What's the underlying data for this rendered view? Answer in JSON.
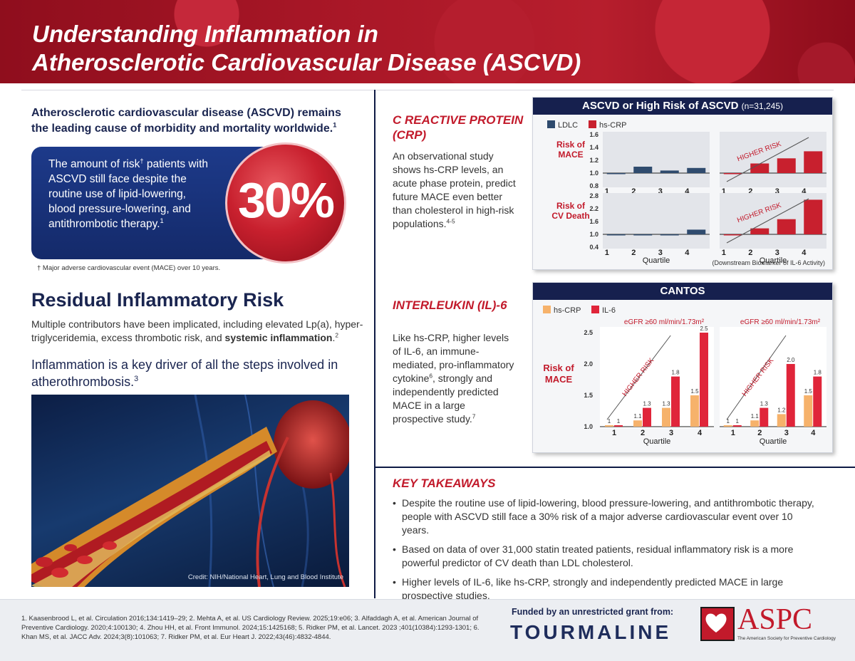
{
  "header": {
    "title_line1": "Understanding Inflammation in",
    "title_line2": "Atherosclerotic Cardiovascular Disease (ASCVD)"
  },
  "intro": {
    "text": "Atherosclerotic cardiovascular disease (ASCVD) remains the leading cause of morbidity and mortality worldwide.",
    "ref": "1"
  },
  "risk_box": {
    "text_a": "The amount of risk",
    "dagger": "†",
    "text_b": " patients with ASCVD still face despite the routine use of lipid-lowering, blood pressure-lowering, and antithrombotic therapy.",
    "ref": "1",
    "percent": "30%",
    "footnote": "† Major adverse cardiovascular event (MACE) over 10 years."
  },
  "residual": {
    "title": "Residual Inflammatory Risk",
    "body_a": "Multiple contributors have been implicated, including elevated Lp(a), hyper-triglyceridemia, excess thrombotic risk, and ",
    "body_bold": "systemic inflammation",
    "body_c": ".",
    "body_ref": "2",
    "driver": "Inflammation is a key driver of all the steps involved in atherothrombosis.",
    "driver_ref": "3",
    "image_credit": "Credit: NIH/National Heart, Lung and Blood Institute"
  },
  "crp": {
    "title": "C REACTIVE PROTEIN (CRP)",
    "body": "An observational study shows hs-CRP levels, an acute phase protein, predict future MACE even better than cholesterol in high-risk populations.",
    "ref": "4-5"
  },
  "il6": {
    "title": "INTERLEUKIN (IL)-6",
    "body_a": "Like hs-CRP, higher levels of IL-6, an immune-mediated, pro-inflammatory cytokine",
    "ref_a": "6",
    "body_b": ", strongly and independently predicted MACE in a large prospective study.",
    "ref_b": "7"
  },
  "chart_data": [
    {
      "type": "bar",
      "title": "ASCVD or High Risk of ASCVD",
      "subtitle": "(n=31,245)",
      "note": "(Downstream Biomarker of IL-6 Activity)",
      "colors": {
        "LDLC": "#2f4b6e",
        "hs-CRP": "#c8202e"
      },
      "annotation": "HIGHER RISK",
      "panels": [
        {
          "ylabel": "Risk of MACE",
          "xlabel": "Quartile",
          "yticks": [
            "1.6",
            "1.4",
            "1.2",
            "1.0",
            "0.8"
          ],
          "ylim": [
            0.8,
            1.6
          ],
          "categories": [
            "1",
            "2",
            "3",
            "4"
          ],
          "series": [
            {
              "name": "LDLC",
              "values": [
                1.0,
                1.1,
                1.04,
                1.08
              ]
            },
            {
              "name": "hs-CRP",
              "values": [
                1.0,
                1.15,
                1.23,
                1.34
              ]
            }
          ]
        },
        {
          "ylabel": "Risk of CV Death",
          "xlabel": "Quartile",
          "yticks": [
            "2.8",
            "2.2",
            "1.6",
            "1.0",
            "0.4"
          ],
          "ylim": [
            0.4,
            2.8
          ],
          "categories": [
            "1",
            "2",
            "3",
            "4"
          ],
          "series": [
            {
              "name": "LDLC",
              "values": [
                1.0,
                0.98,
                0.96,
                1.22
              ]
            },
            {
              "name": "hs-CRP",
              "values": [
                1.0,
                1.28,
                1.71,
                2.62
              ]
            }
          ]
        }
      ]
    },
    {
      "type": "bar",
      "title": "CANTOS",
      "ylabel": "Risk of MACE",
      "xlabel": "Quartile",
      "colors": {
        "hs-CRP": "#f6b26b",
        "IL-6": "#e0253a"
      },
      "annotation": "HIGHER RISK",
      "yticks": [
        "2.5",
        "2.0",
        "1.5",
        "1.0"
      ],
      "ylim": [
        1.0,
        2.5
      ],
      "categories": [
        "1",
        "2",
        "3",
        "4"
      ],
      "panels": [
        {
          "label": "eGFR ≥60 ml/min/1.73m²",
          "series": [
            {
              "name": "hs-CRP",
              "values": [
                1.0,
                1.1,
                1.3,
                1.5
              ],
              "labels": [
                "1",
                "1.1",
                "1.3",
                "1.5"
              ]
            },
            {
              "name": "IL-6",
              "values": [
                1.0,
                1.3,
                1.8,
                2.5
              ],
              "labels": [
                "1",
                "1.3",
                "1.8",
                "2.5"
              ]
            }
          ]
        },
        {
          "label": "eGFR ≥60 ml/min/1.73m²",
          "series": [
            {
              "name": "hs-CRP",
              "values": [
                1.0,
                1.1,
                1.2,
                1.5
              ],
              "labels": [
                "1",
                "1.1",
                "1.2",
                "1.5"
              ]
            },
            {
              "name": "IL-6",
              "values": [
                1.0,
                1.3,
                2.0,
                1.8
              ],
              "labels": [
                "1",
                "1.3",
                "2.0",
                "1.8"
              ]
            }
          ]
        }
      ]
    }
  ],
  "takeaways": {
    "title": "KEY TAKEAWAYS",
    "items": [
      "Despite the routine use of lipid-lowering, blood pressure-lowering, and antithrombotic therapy, people with ASCVD still face a 30% risk of a major adverse cardiovascular event over 10 years.",
      "Based on data of over 31,000 statin treated patients, residual inflammatory risk is a more powerful predictor of CV death than LDL cholesterol.",
      "Higher levels of IL-6, like hs-CRP, strongly and independently predicted MACE in large prospective studies."
    ]
  },
  "footer": {
    "references": "1. Kaasenbrood L, et al. Circulation 2016;134:1419–29; 2. Mehta A, et al. US Cardiology Review. 2025;19:e06; 3. Alfaddagh A, et al. American Journal of Preventive Cardiology. 2020;4:100130; 4. Zhou HH, et al. Front Immunol. 2024;15:1425168; 5. Ridker PM, et al. Lancet. 2023 ;401(10384):1293-1301; 6. Khan MS, et al. JACC Adv. 2024;3(8):101063; 7. Ridker PM, et al. Eur Heart J. 2022;43(46):4832-4844.",
    "funded": "Funded by an unrestricted grant from:",
    "sponsor": "TOURMALINE",
    "aspc": "ASPC",
    "aspc_sub": "The American Society for Preventive Cardiology"
  }
}
